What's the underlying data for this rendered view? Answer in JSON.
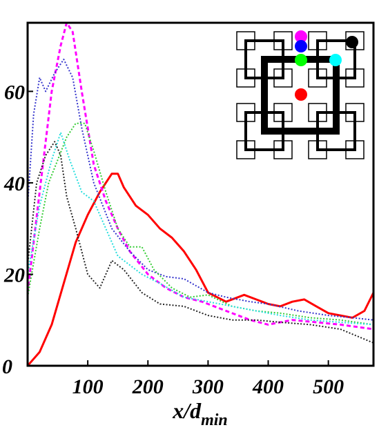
{
  "chart_data": {
    "type": "line",
    "xlabel": "x/d",
    "xlabel_sub": "min",
    "ylabel": "",
    "xlim": [
      0,
      575
    ],
    "ylim": [
      0,
      75
    ],
    "xticks": [
      100,
      200,
      300,
      400,
      500
    ],
    "yticks": [
      0,
      20,
      40,
      60
    ],
    "grid": false,
    "series": [
      {
        "color": "#ff0000",
        "style": "solid",
        "width": 3,
        "x": [
          0,
          20,
          40,
          60,
          80,
          100,
          120,
          140,
          150,
          160,
          180,
          200,
          220,
          240,
          260,
          280,
          300,
          330,
          360,
          380,
          400,
          420,
          440,
          460,
          480,
          500,
          520,
          540,
          560,
          575
        ],
        "y": [
          0,
          3,
          9,
          18,
          27,
          33,
          38,
          42,
          42,
          39,
          35,
          33,
          30,
          28,
          25,
          21,
          16,
          14,
          15.5,
          14.5,
          13.5,
          13,
          14,
          14.5,
          13,
          11.5,
          11,
          10.5,
          12,
          16
        ]
      },
      {
        "color": "#ff00ff",
        "style": "dashed",
        "width": 3,
        "x": [
          0,
          20,
          40,
          55,
          65,
          75,
          90,
          110,
          130,
          150,
          170,
          200,
          230,
          260,
          290,
          330,
          370,
          400,
          440,
          480,
          520,
          575
        ],
        "y": [
          16,
          38,
          60,
          70,
          75,
          73,
          60,
          44,
          36,
          30,
          25,
          20,
          17,
          15,
          14,
          12,
          10,
          9,
          10,
          9.5,
          9,
          8
        ]
      },
      {
        "color": "#3333cc",
        "style": "dotted",
        "width": 2,
        "x": [
          0,
          10,
          20,
          30,
          45,
          60,
          75,
          90,
          110,
          140,
          170,
          200,
          230,
          260,
          300,
          330,
          370,
          400,
          450,
          500,
          540,
          575
        ],
        "y": [
          35,
          55,
          63,
          60,
          64,
          67,
          63,
          52,
          40,
          30,
          25,
          21,
          19.5,
          19,
          16,
          15,
          14,
          13.5,
          12,
          11,
          10.5,
          10
        ]
      },
      {
        "color": "#33cc33",
        "style": "dotted",
        "width": 2,
        "x": [
          0,
          20,
          35,
          50,
          65,
          80,
          95,
          110,
          130,
          150,
          170,
          190,
          210,
          240,
          270,
          300,
          340,
          380,
          420,
          470,
          520,
          575
        ],
        "y": [
          15,
          30,
          40,
          45,
          50,
          53,
          53,
          47,
          38,
          30,
          26,
          26,
          21,
          17,
          15,
          15.5,
          13,
          12,
          11.5,
          10.5,
          10,
          9
        ]
      },
      {
        "color": "#22dddd",
        "style": "dotted",
        "width": 2,
        "x": [
          0,
          20,
          40,
          55,
          70,
          90,
          110,
          130,
          150,
          170,
          190,
          220,
          260,
          300,
          340,
          380,
          420,
          470,
          520,
          575
        ],
        "y": [
          20,
          35,
          45,
          51,
          45,
          38,
          36,
          30,
          24,
          22,
          20,
          18,
          15,
          14,
          13,
          12,
          11,
          10,
          9.5,
          9
        ]
      },
      {
        "color": "#222222",
        "style": "dotted",
        "width": 2,
        "x": [
          0,
          15,
          30,
          45,
          55,
          65,
          80,
          100,
          120,
          140,
          160,
          190,
          220,
          260,
          300,
          340,
          380,
          420,
          470,
          520,
          575
        ],
        "y": [
          22,
          40,
          46,
          49,
          46,
          37,
          30,
          20,
          17,
          23,
          21,
          16,
          13.5,
          13,
          11,
          10,
          10,
          9.5,
          9,
          8,
          5
        ]
      }
    ]
  },
  "inset": {
    "dots": [
      {
        "color": "#ff00ff"
      },
      {
        "color": "#0000ff"
      },
      {
        "color": "#00ff00"
      },
      {
        "color": "#ff0000"
      },
      {
        "color": "#000000"
      },
      {
        "color": "#00ffff"
      }
    ]
  }
}
